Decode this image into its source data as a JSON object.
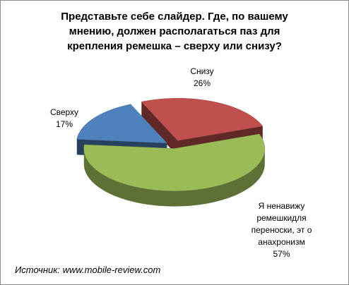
{
  "chart_data": {
    "type": "pie3d",
    "title": "Представьте себе слайдер. Где, по вашему мнению, должен располагаться  паз для крепления ремешка – сверху или снизу?",
    "categories": [
      "Сверху",
      "Снизу",
      "Я ненавижу ремешкидля переноски, эт о анахронизм"
    ],
    "values": [
      17,
      26,
      57
    ],
    "value_labels": [
      "17%",
      "26%",
      "57%"
    ],
    "colors": [
      "#4f81bd",
      "#c0504d",
      "#9bbb59"
    ],
    "source": "Источник: www.mobile-review.com"
  }
}
